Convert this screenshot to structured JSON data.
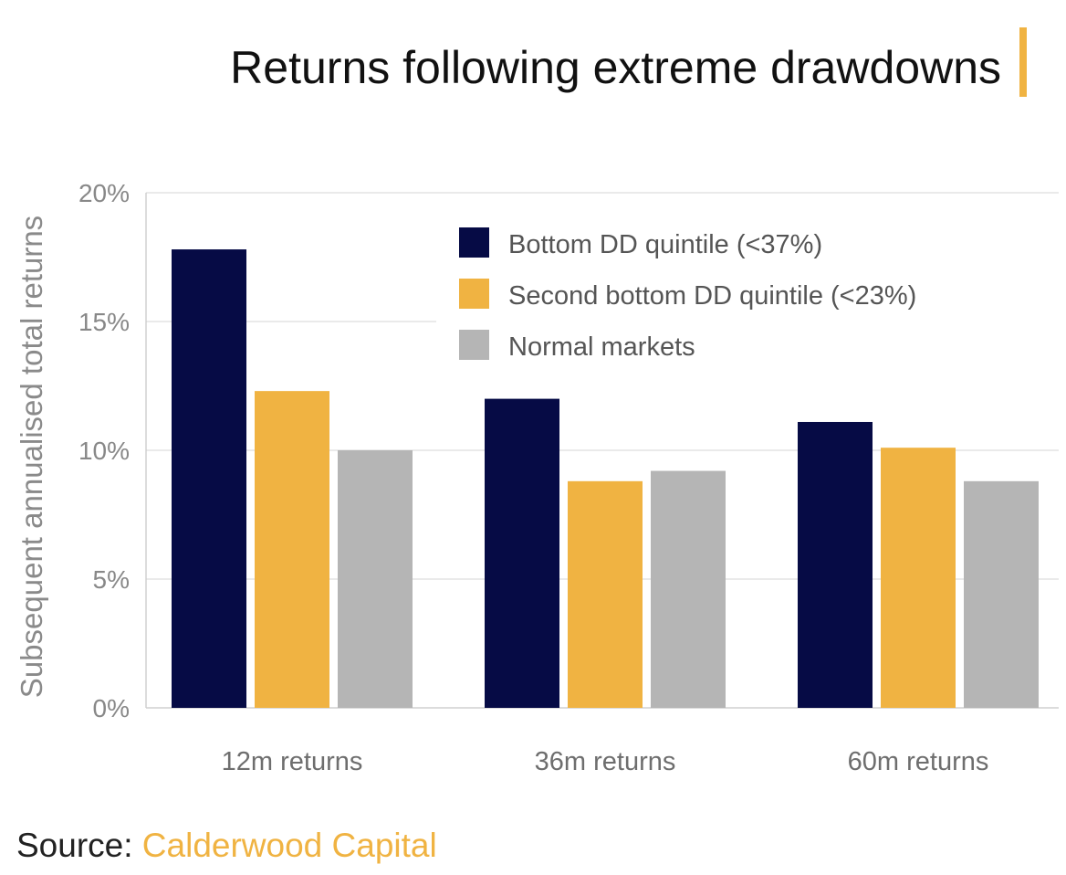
{
  "colors": {
    "bottom_dd": "#060b45",
    "second_bottom_dd": "#f0b342",
    "normal": "#b5b5b5",
    "accent_bar": "#f0b342"
  },
  "source": {
    "prefix": "Source: ",
    "name": "Calderwood Capital"
  },
  "chart_data": {
    "type": "bar",
    "title": "Returns following extreme drawdowns",
    "xlabel": "",
    "ylabel": "Subsequent annualised total returns",
    "ylim": [
      0,
      20
    ],
    "yticks": [
      0,
      5,
      10,
      15,
      20
    ],
    "ytick_labels": [
      "0%",
      "5%",
      "10%",
      "15%",
      "20%"
    ],
    "grid": true,
    "legend_position": "top-right",
    "categories": [
      "12m returns",
      "36m returns",
      "60m returns"
    ],
    "series": [
      {
        "name": "Bottom DD quintile (<37%)",
        "values": [
          17.8,
          12.0,
          11.1
        ],
        "color": "#060b45"
      },
      {
        "name": "Second bottom DD quintile (<23%)",
        "values": [
          12.3,
          8.8,
          10.1
        ],
        "color": "#f0b342"
      },
      {
        "name": "Normal markets",
        "values": [
          10.0,
          9.2,
          8.8
        ],
        "color": "#b5b5b5"
      }
    ]
  }
}
